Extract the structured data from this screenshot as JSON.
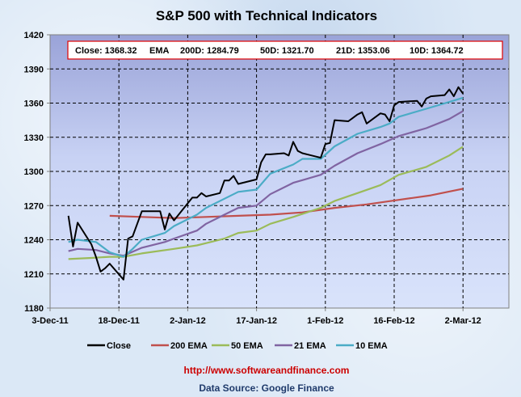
{
  "chart_data": {
    "type": "line",
    "title": "S&P 500 with Technical Indicators",
    "xlabel": "",
    "ylabel": "",
    "ylim": [
      1180,
      1420
    ],
    "yticks": [
      "1180",
      "1210",
      "1240",
      "1270",
      "1300",
      "1330",
      "1360",
      "1390",
      "1420"
    ],
    "xlim": [
      "2011-12-03",
      "2012-03-12"
    ],
    "xticks": [
      {
        "date": "2011-12-03",
        "label": "3-Dec-11"
      },
      {
        "date": "2011-12-18",
        "label": "18-Dec-11"
      },
      {
        "date": "2012-01-02",
        "label": "2-Jan-12"
      },
      {
        "date": "2012-01-17",
        "label": "17-Jan-12"
      },
      {
        "date": "2012-02-01",
        "label": "1-Feb-12"
      },
      {
        "date": "2012-02-16",
        "label": "16-Feb-12"
      },
      {
        "date": "2012-03-02",
        "label": "2-Mar-12"
      }
    ],
    "grid": true,
    "legend_placement": "bottom",
    "summary": {
      "close": "Close: 1368.32",
      "ema_label": "EMA",
      "ema200": "200D: 1284.79",
      "ema50": "50D: 1321.70",
      "ema21": "21D: 1353.06",
      "ema10": "10D: 1364.72"
    },
    "series": [
      {
        "name": "Close",
        "color": "#000000",
        "points": [
          [
            "2011-12-07",
            1261
          ],
          [
            "2011-12-08",
            1234
          ],
          [
            "2011-12-09",
            1255
          ],
          [
            "2011-12-12",
            1236
          ],
          [
            "2011-12-13",
            1225
          ],
          [
            "2011-12-14",
            1212
          ],
          [
            "2011-12-15",
            1215
          ],
          [
            "2011-12-16",
            1219
          ],
          [
            "2011-12-19",
            1205
          ],
          [
            "2011-12-20",
            1241
          ],
          [
            "2011-12-21",
            1243
          ],
          [
            "2011-12-22",
            1254
          ],
          [
            "2011-12-23",
            1265
          ],
          [
            "2011-12-27",
            1265
          ],
          [
            "2011-12-28",
            1249
          ],
          [
            "2011-12-29",
            1263
          ],
          [
            "2011-12-30",
            1257
          ],
          [
            "2012-01-03",
            1277
          ],
          [
            "2012-01-04",
            1277
          ],
          [
            "2012-01-05",
            1281
          ],
          [
            "2012-01-06",
            1278
          ],
          [
            "2012-01-09",
            1281
          ],
          [
            "2012-01-10",
            1292
          ],
          [
            "2012-01-11",
            1292
          ],
          [
            "2012-01-12",
            1296
          ],
          [
            "2012-01-13",
            1289
          ],
          [
            "2012-01-17",
            1293
          ],
          [
            "2012-01-18",
            1308
          ],
          [
            "2012-01-19",
            1315
          ],
          [
            "2012-01-20",
            1315
          ],
          [
            "2012-01-23",
            1316
          ],
          [
            "2012-01-24",
            1314
          ],
          [
            "2012-01-25",
            1326
          ],
          [
            "2012-01-26",
            1318
          ],
          [
            "2012-01-27",
            1316
          ],
          [
            "2012-01-30",
            1313
          ],
          [
            "2012-01-31",
            1312
          ],
          [
            "2012-02-01",
            1324
          ],
          [
            "2012-02-02",
            1325
          ],
          [
            "2012-02-03",
            1345
          ],
          [
            "2012-02-06",
            1344
          ],
          [
            "2012-02-07",
            1347
          ],
          [
            "2012-02-08",
            1350
          ],
          [
            "2012-02-09",
            1352
          ],
          [
            "2012-02-10",
            1342
          ],
          [
            "2012-02-13",
            1351
          ],
          [
            "2012-02-14",
            1350
          ],
          [
            "2012-02-15",
            1344
          ],
          [
            "2012-02-16",
            1358
          ],
          [
            "2012-02-17",
            1361
          ],
          [
            "2012-02-21",
            1362
          ],
          [
            "2012-02-22",
            1357
          ],
          [
            "2012-02-23",
            1364
          ],
          [
            "2012-02-24",
            1366
          ],
          [
            "2012-02-27",
            1367
          ],
          [
            "2012-02-28",
            1372
          ],
          [
            "2012-02-29",
            1366
          ],
          [
            "2012-03-01",
            1374
          ],
          [
            "2012-03-02",
            1368.32
          ]
        ]
      },
      {
        "name": "200 EMA",
        "color": "#c0504d",
        "points": [
          [
            "2011-12-16",
            1261
          ],
          [
            "2011-12-23",
            1260
          ],
          [
            "2011-12-30",
            1259
          ],
          [
            "2012-01-06",
            1260
          ],
          [
            "2012-01-13",
            1261
          ],
          [
            "2012-01-20",
            1262
          ],
          [
            "2012-01-27",
            1264
          ],
          [
            "2012-02-03",
            1268
          ],
          [
            "2012-02-10",
            1271
          ],
          [
            "2012-02-17",
            1275
          ],
          [
            "2012-02-24",
            1279
          ],
          [
            "2012-03-02",
            1284.79
          ]
        ]
      },
      {
        "name": "50 EMA",
        "color": "#9bbb59",
        "points": [
          [
            "2011-12-07",
            1223
          ],
          [
            "2011-12-12",
            1224
          ],
          [
            "2011-12-16",
            1225
          ],
          [
            "2011-12-19",
            1225
          ],
          [
            "2011-12-23",
            1228
          ],
          [
            "2011-12-30",
            1232
          ],
          [
            "2012-01-04",
            1235
          ],
          [
            "2012-01-10",
            1241
          ],
          [
            "2012-01-13",
            1246
          ],
          [
            "2012-01-17",
            1248
          ],
          [
            "2012-01-20",
            1254
          ],
          [
            "2012-01-25",
            1260
          ],
          [
            "2012-01-31",
            1268
          ],
          [
            "2012-02-03",
            1274
          ],
          [
            "2012-02-08",
            1281
          ],
          [
            "2012-02-13",
            1288
          ],
          [
            "2012-02-17",
            1297
          ],
          [
            "2012-02-23",
            1304
          ],
          [
            "2012-02-28",
            1314
          ],
          [
            "2012-03-02",
            1321.7
          ]
        ]
      },
      {
        "name": "21 EMA",
        "color": "#8064a2",
        "points": [
          [
            "2011-12-07",
            1230
          ],
          [
            "2011-12-09",
            1232
          ],
          [
            "2011-12-13",
            1231
          ],
          [
            "2011-12-16",
            1228
          ],
          [
            "2011-12-19",
            1226
          ],
          [
            "2011-12-23",
            1233
          ],
          [
            "2011-12-28",
            1238
          ],
          [
            "2011-12-30",
            1241
          ],
          [
            "2012-01-04",
            1248
          ],
          [
            "2012-01-06",
            1254
          ],
          [
            "2012-01-10",
            1262
          ],
          [
            "2012-01-13",
            1268
          ],
          [
            "2012-01-17",
            1270
          ],
          [
            "2012-01-20",
            1280
          ],
          [
            "2012-01-25",
            1290
          ],
          [
            "2012-01-31",
            1297
          ],
          [
            "2012-02-03",
            1305
          ],
          [
            "2012-02-08",
            1316
          ],
          [
            "2012-02-13",
            1324
          ],
          [
            "2012-02-17",
            1331
          ],
          [
            "2012-02-23",
            1338
          ],
          [
            "2012-02-28",
            1346
          ],
          [
            "2012-03-02",
            1353.06
          ]
        ]
      },
      {
        "name": "10 EMA",
        "color": "#4bacc6",
        "points": [
          [
            "2011-12-07",
            1238
          ],
          [
            "2011-12-09",
            1240
          ],
          [
            "2011-12-13",
            1238
          ],
          [
            "2011-12-16",
            1229
          ],
          [
            "2011-12-19",
            1225
          ],
          [
            "2011-12-21",
            1232
          ],
          [
            "2011-12-23",
            1240
          ],
          [
            "2011-12-28",
            1246
          ],
          [
            "2011-12-30",
            1252
          ],
          [
            "2012-01-04",
            1262
          ],
          [
            "2012-01-06",
            1268
          ],
          [
            "2012-01-10",
            1276
          ],
          [
            "2012-01-13",
            1282
          ],
          [
            "2012-01-17",
            1284
          ],
          [
            "2012-01-20",
            1298
          ],
          [
            "2012-01-25",
            1306
          ],
          [
            "2012-01-27",
            1311
          ],
          [
            "2012-01-31",
            1311
          ],
          [
            "2012-02-03",
            1322
          ],
          [
            "2012-02-08",
            1333
          ],
          [
            "2012-02-13",
            1339
          ],
          [
            "2012-02-15",
            1342
          ],
          [
            "2012-02-17",
            1348
          ],
          [
            "2012-02-23",
            1355
          ],
          [
            "2012-02-28",
            1361
          ],
          [
            "2012-03-02",
            1364.72
          ]
        ]
      }
    ]
  },
  "footer": {
    "url": "http://www.softwareandfinance.com",
    "source": "Data Source: Google Finance",
    "url_color": "#cc0000",
    "source_color": "#1f3a6b"
  }
}
